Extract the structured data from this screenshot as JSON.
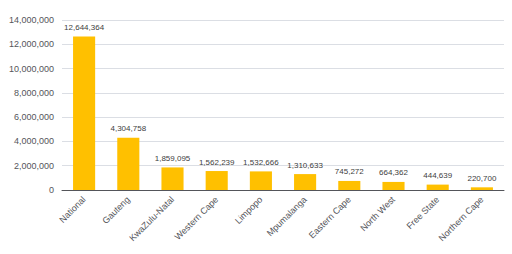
{
  "chart_data": {
    "type": "bar",
    "categories": [
      "National",
      "Gauteng",
      "KwaZulu-Natal",
      "Western Cape",
      "Limpopo",
      "Mpumalanga",
      "Eastern Cape",
      "North West",
      "Free State",
      "Northern Cape"
    ],
    "values": [
      12644364,
      4304758,
      1859095,
      1562239,
      1532666,
      1310633,
      745272,
      664362,
      444639,
      220700
    ],
    "value_labels": [
      "12,644,364",
      "4,304,758",
      "1,859,095",
      "1,562,239",
      "1,532,666",
      "1,310,633",
      "745,272",
      "664,362",
      "444,639",
      "220,700"
    ],
    "data_labels": true,
    "color": "#FFC000",
    "ylim": [
      0,
      14000000
    ],
    "yticks": [
      0,
      {
        "value": 2000000,
        "label": "2,000,000"
      },
      {
        "value": 4000000,
        "label": "4,000,000"
      },
      {
        "value": 6000000,
        "label": "6,000,000"
      },
      {
        "value": 8000000,
        "label": "8,000,000"
      },
      {
        "value": 10000000,
        "label": "10,000,000"
      },
      {
        "value": 12000000,
        "label": "12,000,000"
      },
      {
        "value": 14000000,
        "label": "14,000,000"
      }
    ],
    "grid": true
  }
}
